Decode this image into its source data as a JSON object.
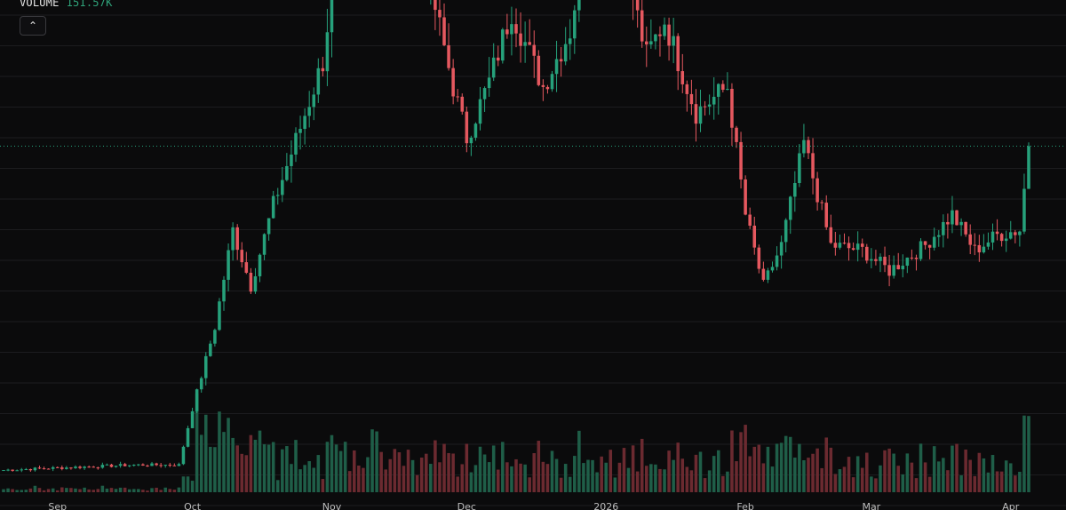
{
  "header": {
    "volume_label": "VOLUME",
    "volume_value": "151.57K",
    "collapse_icon": "chevron-up-icon"
  },
  "colors": {
    "background": "#0b0b0c",
    "up": "#26a17b",
    "down": "#e5585f",
    "up_volume": "#1f5e48",
    "down_volume": "#6b2a30",
    "grid": "#1c1c1f",
    "last_price_line": "#26a17b"
  },
  "chart_data": {
    "type": "candlestick",
    "title": "",
    "xlabel": "",
    "ylabel": "",
    "x_ticks": [
      "Sep",
      "Oct",
      "Nov",
      "Dec",
      "2026",
      "Feb",
      "Mar",
      "Apr"
    ],
    "x_tick_dates": [
      "2025-09-01",
      "2025-10-01",
      "2025-11-01",
      "2025-12-01",
      "2026-01-01",
      "2026-02-01",
      "2026-03-01",
      "2026-04-01"
    ],
    "date_range": [
      "2025-08-20",
      "2026-04-05"
    ],
    "price_range": [
      0,
      100
    ],
    "last_close": 34,
    "grid": true,
    "anchors": [
      [
        "2025-08-20",
        8
      ],
      [
        "2025-09-18",
        9
      ],
      [
        "2025-09-28",
        9
      ],
      [
        "2025-10-01",
        20
      ],
      [
        "2025-10-06",
        36
      ],
      [
        "2025-10-10",
        55
      ],
      [
        "2025-10-14",
        44
      ],
      [
        "2025-10-19",
        60
      ],
      [
        "2025-10-25",
        75
      ],
      [
        "2025-10-30",
        88
      ],
      [
        "2025-11-04",
        123
      ],
      [
        "2025-11-08",
        112
      ],
      [
        "2025-11-11",
        143
      ],
      [
        "2025-11-17",
        114
      ],
      [
        "2025-11-22",
        106
      ],
      [
        "2025-11-28",
        83
      ],
      [
        "2025-12-01",
        73
      ],
      [
        "2025-12-06",
        84
      ],
      [
        "2025-12-11",
        98
      ],
      [
        "2025-12-18",
        83
      ],
      [
        "2025-12-24",
        94
      ],
      [
        "2025-12-29",
        120
      ],
      [
        "2026-01-05",
        108
      ],
      [
        "2026-01-10",
        89
      ],
      [
        "2026-01-14",
        96
      ],
      [
        "2026-01-21",
        78
      ],
      [
        "2026-01-28",
        83
      ],
      [
        "2026-02-01",
        58
      ],
      [
        "2026-02-05",
        44
      ],
      [
        "2026-02-09",
        52
      ],
      [
        "2026-02-14",
        72
      ],
      [
        "2026-02-20",
        52
      ],
      [
        "2026-02-27",
        51
      ],
      [
        "2026-03-05",
        47
      ],
      [
        "2026-03-13",
        52
      ],
      [
        "2026-03-19",
        58
      ],
      [
        "2026-03-24",
        51
      ],
      [
        "2026-03-29",
        54
      ],
      [
        "2026-04-03",
        55
      ],
      [
        "2026-04-05",
        71
      ]
    ]
  }
}
